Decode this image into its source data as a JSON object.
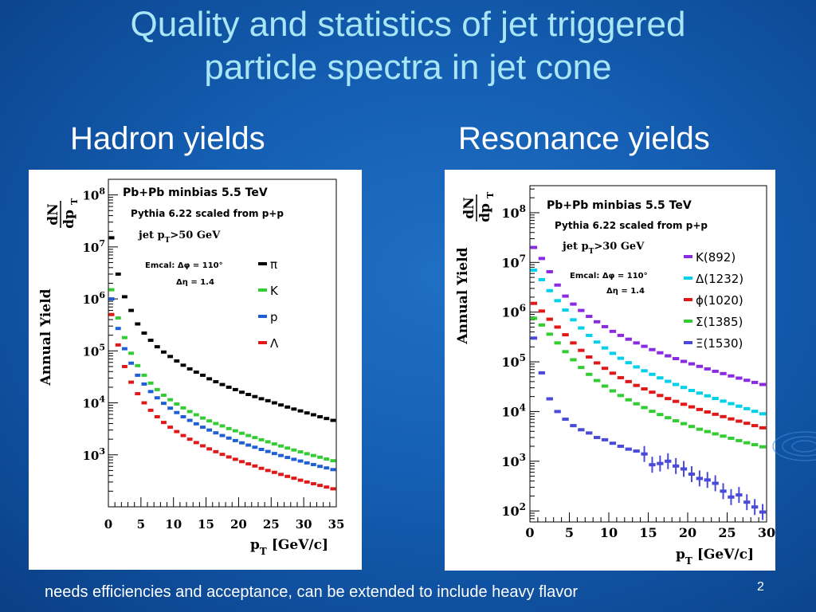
{
  "slide": {
    "title_line1": "Quality and statistics of jet triggered",
    "title_line2": "particle spectra in jet cone",
    "left_subtitle": "Hadron yields",
    "right_subtitle": "Resonance yields",
    "footer": "needs efficiencies and acceptance, can be extended to include heavy flavor",
    "page_number": "2"
  },
  "chart_data": [
    {
      "type": "scatter",
      "title": "Hadron yields",
      "header": "Pb+Pb minbias 5.5 TeV",
      "note_line1": "Pythia 6.22 scaled from p+p",
      "note_cut_prefix": "jet p",
      "note_cut_sub": "T",
      "note_cut_suffix": ">50 GeV",
      "emcal_line1": "Emcal: Δφ = 110°",
      "emcal_line2": "Δη = 1.4",
      "xlabel_main": "p",
      "xlabel_sub": "T",
      "xlabel_unit": "[GeV/c]",
      "ylabel": "Annual Yield",
      "ylabel_frac_num": "dN",
      "ylabel_frac_den": "dp",
      "ylabel_frac_den_sub": "T",
      "xlim": [
        0,
        35
      ],
      "ylim": [
        100,
        200000000
      ],
      "yscale": "log",
      "x_ticks": [
        "0",
        "5",
        "10",
        "15",
        "20",
        "25",
        "30",
        "35"
      ],
      "y_ticks": [
        {
          "base": "10",
          "exp": "3",
          "value": 1000
        },
        {
          "base": "10",
          "exp": "4",
          "value": 10000
        },
        {
          "base": "10",
          "exp": "5",
          "value": 100000
        },
        {
          "base": "10",
          "exp": "6",
          "value": 1000000
        },
        {
          "base": "10",
          "exp": "7",
          "value": 10000000
        },
        {
          "base": "10",
          "exp": "8",
          "value": 100000000
        }
      ],
      "legend_position": "right",
      "series": [
        {
          "name": "π",
          "color": "#000000",
          "x": [
            0.5,
            1.5,
            2.5,
            3.5,
            4.5,
            5.5,
            6.5,
            7.5,
            8.5,
            9.5,
            10.5,
            11.5,
            12.5,
            13.5,
            14.5,
            15.5,
            16.5,
            17.5,
            18.5,
            19.5,
            20.5,
            21.5,
            22.5,
            23.5,
            24.5,
            25.5,
            26.5,
            27.5,
            28.5,
            29.5,
            30.5,
            31.5,
            32.5,
            33.5,
            34.5
          ],
          "y": [
            15000000,
            3000000,
            1100000,
            600000,
            330000,
            220000,
            160000,
            120000,
            95000,
            78000,
            64000,
            53000,
            45000,
            39000,
            34000,
            29000,
            25500,
            22500,
            20000,
            18000,
            16000,
            14500,
            13200,
            12000,
            11000,
            10000,
            9100,
            8300,
            7600,
            7000,
            6400,
            5900,
            5400,
            5000,
            4600
          ]
        },
        {
          "name": "K",
          "color": "#33cc33",
          "x": [
            0.5,
            1.5,
            2.5,
            3.5,
            4.5,
            5.5,
            6.5,
            7.5,
            8.5,
            9.5,
            10.5,
            11.5,
            12.5,
            13.5,
            14.5,
            15.5,
            16.5,
            17.5,
            18.5,
            19.5,
            20.5,
            21.5,
            22.5,
            23.5,
            24.5,
            25.5,
            26.5,
            27.5,
            28.5,
            29.5,
            30.5,
            31.5,
            32.5,
            33.5,
            34.5
          ],
          "y": [
            1500000,
            430000,
            180000,
            90000,
            52000,
            34000,
            24000,
            18000,
            14000,
            11500,
            9500,
            8000,
            6800,
            5900,
            5100,
            4500,
            4000,
            3600,
            3200,
            2900,
            2600,
            2350,
            2150,
            1950,
            1780,
            1620,
            1480,
            1350,
            1240,
            1140,
            1050,
            970,
            900,
            830,
            770
          ]
        },
        {
          "name": "p",
          "color": "#1f5fd6",
          "x": [
            0.5,
            1.5,
            2.5,
            3.5,
            4.5,
            5.5,
            6.5,
            7.5,
            8.5,
            9.5,
            10.5,
            11.5,
            12.5,
            13.5,
            14.5,
            15.5,
            16.5,
            17.5,
            18.5,
            19.5,
            20.5,
            21.5,
            22.5,
            23.5,
            24.5,
            25.5,
            26.5,
            27.5,
            28.5,
            29.5,
            30.5,
            31.5,
            32.5,
            33.5,
            34.5
          ],
          "y": [
            1000000,
            270000,
            110000,
            58000,
            34000,
            23000,
            16500,
            12500,
            9800,
            7900,
            6500,
            5400,
            4600,
            3950,
            3400,
            3000,
            2650,
            2350,
            2100,
            1880,
            1700,
            1540,
            1400,
            1270,
            1160,
            1060,
            970,
            890,
            820,
            760,
            700,
            650,
            600,
            560,
            520
          ]
        },
        {
          "name": "Λ",
          "color": "#e01818",
          "x": [
            0.5,
            1.5,
            2.5,
            3.5,
            4.5,
            5.5,
            6.5,
            7.5,
            8.5,
            9.5,
            10.5,
            11.5,
            12.5,
            13.5,
            14.5,
            15.5,
            16.5,
            17.5,
            18.5,
            19.5,
            20.5,
            21.5,
            22.5,
            23.5,
            24.5,
            25.5,
            26.5,
            27.5,
            28.5,
            29.5,
            30.5,
            31.5,
            32.5,
            33.5,
            34.5
          ],
          "y": [
            500000,
            130000,
            50000,
            25000,
            15000,
            10000,
            7200,
            5400,
            4200,
            3400,
            2800,
            2350,
            2000,
            1720,
            1490,
            1300,
            1150,
            1020,
            910,
            820,
            740,
            670,
            610,
            550,
            500,
            460,
            420,
            385,
            355,
            325,
            300,
            278,
            258,
            240,
            222
          ]
        }
      ]
    },
    {
      "type": "scatter",
      "title": "Resonance yields",
      "header": "Pb+Pb minbias 5.5 TeV",
      "note_line1": "Pythia 6.22 scaled from p+p",
      "note_cut_prefix": "jet p",
      "note_cut_sub": "T",
      "note_cut_suffix": ">30 GeV",
      "emcal_line1": "Emcal: Δφ = 110°",
      "emcal_line2": "Δη = 1.4",
      "xlabel_main": "p",
      "xlabel_sub": "T",
      "xlabel_unit": "[GeV/c]",
      "ylabel": "Annual Yield",
      "ylabel_frac_num": "dN",
      "ylabel_frac_den": "dp",
      "ylabel_frac_den_sub": "T",
      "xlim": [
        0,
        30
      ],
      "ylim": [
        60,
        350000000
      ],
      "yscale": "log",
      "x_ticks": [
        "0",
        "5",
        "10",
        "15",
        "20",
        "25",
        "30"
      ],
      "y_ticks": [
        {
          "base": "10",
          "exp": "2",
          "value": 100
        },
        {
          "base": "10",
          "exp": "3",
          "value": 1000
        },
        {
          "base": "10",
          "exp": "4",
          "value": 10000
        },
        {
          "base": "10",
          "exp": "5",
          "value": 100000
        },
        {
          "base": "10",
          "exp": "6",
          "value": 1000000
        },
        {
          "base": "10",
          "exp": "7",
          "value": 10000000
        },
        {
          "base": "10",
          "exp": "8",
          "value": 100000000
        }
      ],
      "legend_position": "right",
      "series": [
        {
          "name": "K(892)",
          "color": "#8a2be2",
          "x": [
            0.5,
            1.5,
            2.5,
            3.5,
            4.5,
            5.5,
            6.5,
            7.5,
            8.5,
            9.5,
            10.5,
            11.5,
            12.5,
            13.5,
            14.5,
            15.5,
            16.5,
            17.5,
            18.5,
            19.5,
            20.5,
            21.5,
            22.5,
            23.5,
            24.5,
            25.5,
            26.5,
            27.5,
            28.5,
            29.5
          ],
          "y": [
            20000000,
            12000000,
            6500000,
            3500000,
            2100000,
            1450000,
            1080000,
            820000,
            640000,
            510000,
            410000,
            340000,
            285000,
            240000,
            205000,
            176000,
            152000,
            132000,
            116000,
            102000,
            91000,
            81000,
            72000,
            64500,
            58000,
            52000,
            47000,
            42500,
            38500,
            35000
          ]
        },
        {
          "name": "Δ(1232)",
          "color": "#00d0e8",
          "x": [
            0.5,
            1.5,
            2.5,
            3.5,
            4.5,
            5.5,
            6.5,
            7.5,
            8.5,
            9.5,
            10.5,
            11.5,
            12.5,
            13.5,
            14.5,
            15.5,
            16.5,
            17.5,
            18.5,
            19.5,
            20.5,
            21.5,
            22.5,
            23.5,
            24.5,
            25.5,
            26.5,
            27.5,
            28.5,
            29.5
          ],
          "y": [
            7000000,
            4500000,
            2700000,
            1700000,
            1100000,
            700000,
            480000,
            340000,
            250000,
            190000,
            148000,
            118000,
            96000,
            79000,
            66000,
            56000,
            47500,
            40500,
            35000,
            30500,
            26500,
            23500,
            20700,
            18300,
            16200,
            14400,
            12800,
            11400,
            10100,
            9000
          ]
        },
        {
          "name": "ϕ(1020)",
          "color": "#e01818",
          "x": [
            0.5,
            1.5,
            2.5,
            3.5,
            4.5,
            5.5,
            6.5,
            7.5,
            8.5,
            9.5,
            10.5,
            11.5,
            12.5,
            13.5,
            14.5,
            15.5,
            16.5,
            17.5,
            18.5,
            19.5,
            20.5,
            21.5,
            22.5,
            23.5,
            24.5,
            25.5,
            26.5,
            27.5,
            28.5,
            29.5
          ],
          "y": [
            1500000,
            1050000,
            720000,
            500000,
            350000,
            240000,
            170000,
            125000,
            95000,
            74000,
            59000,
            48000,
            40000,
            33500,
            28500,
            24500,
            21000,
            18200,
            16000,
            14000,
            12400,
            11000,
            9800,
            8800,
            7900,
            7100,
            6400,
            5800,
            5200,
            4700
          ]
        },
        {
          "name": "Σ(1385)",
          "color": "#33cc33",
          "x": [
            0.5,
            1.5,
            2.5,
            3.5,
            4.5,
            5.5,
            6.5,
            7.5,
            8.5,
            9.5,
            10.5,
            11.5,
            12.5,
            13.5,
            14.5,
            15.5,
            16.5,
            17.5,
            18.5,
            19.5,
            20.5,
            21.5,
            22.5,
            23.5,
            24.5,
            25.5,
            26.5,
            27.5,
            28.5,
            29.5
          ],
          "y": [
            750000,
            550000,
            360000,
            240000,
            160000,
            110000,
            77000,
            56000,
            42000,
            32500,
            26000,
            21000,
            17200,
            14300,
            12000,
            10100,
            8700,
            7500,
            6500,
            5700,
            5000,
            4400,
            3950,
            3550,
            3200,
            2900,
            2600,
            2350,
            2150,
            1950
          ]
        },
        {
          "name": "Ξ(1530)",
          "color": "#4a4ad8",
          "x": [
            0.5,
            1.5,
            2.5,
            3.5,
            4.5,
            5.5,
            6.5,
            7.5,
            8.5,
            9.5,
            10.5,
            11.5,
            12.5,
            13.5,
            14.5,
            15.5,
            16.5,
            17.5,
            18.5,
            19.5,
            20.5,
            21.5,
            22.5,
            23.5,
            24.5,
            25.5,
            26.5,
            27.5,
            28.5,
            29.5
          ],
          "y": [
            300000,
            60000,
            18000,
            10000,
            7000,
            5200,
            4300,
            3700,
            3000,
            2700,
            2300,
            2000,
            1750,
            1600,
            1400,
            850,
            900,
            1000,
            800,
            700,
            550,
            450,
            420,
            360,
            250,
            190,
            210,
            150,
            120,
            95
          ]
        }
      ]
    }
  ]
}
